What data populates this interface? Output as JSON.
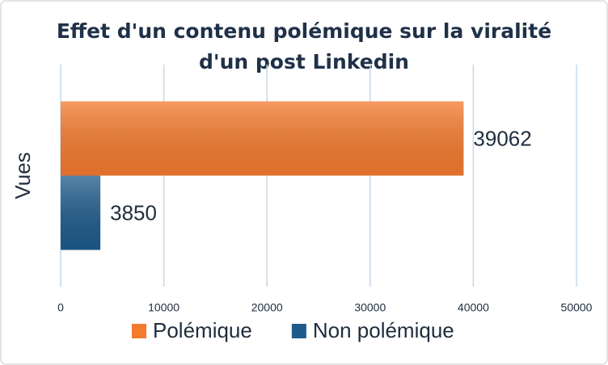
{
  "chart_data": {
    "type": "bar",
    "orientation": "horizontal",
    "title": [
      "Effet d'un contenu polémique sur la viralité",
      "d'un post Linkedin"
    ],
    "categories": [
      "Vues"
    ],
    "series": [
      {
        "name": "Polémique",
        "color": "#f47a2e",
        "values": [
          39062
        ]
      },
      {
        "name": "Non polémique",
        "color": "#1e5b8c",
        "values": [
          3850
        ]
      }
    ],
    "xlim": [
      0,
      50000
    ],
    "xticks": [
      0,
      10000,
      20000,
      30000,
      40000,
      50000
    ],
    "grid": true,
    "legend": "bottom",
    "data_labels": true
  }
}
